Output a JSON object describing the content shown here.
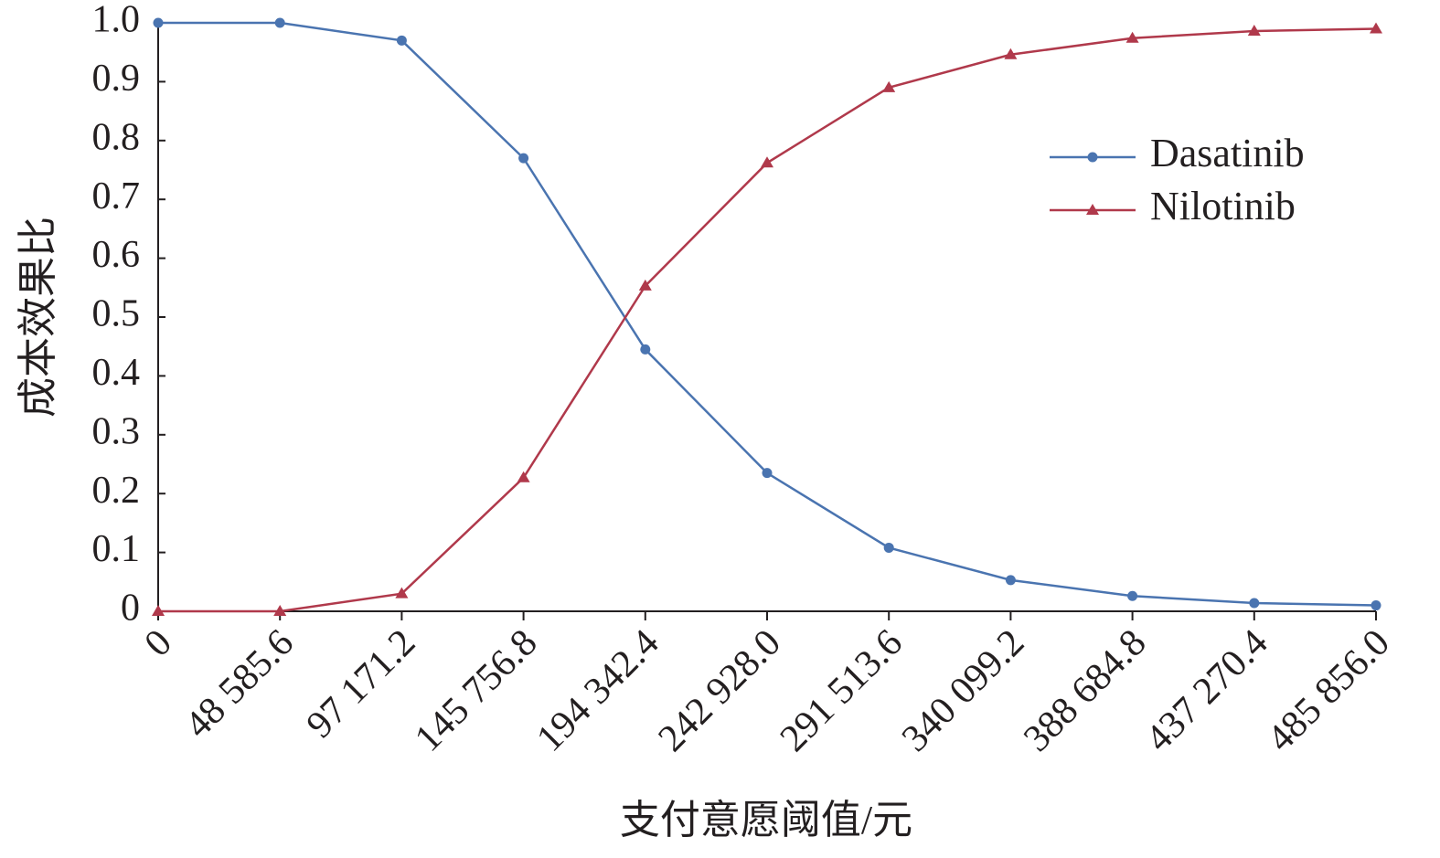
{
  "chart_data": {
    "type": "line",
    "x_label": "支付意愿阈值/元",
    "y_label": "成本效果比",
    "x": [
      0,
      48585.6,
      97171.2,
      145756.8,
      194342.4,
      242928.0,
      291513.6,
      340099.2,
      388684.8,
      437270.4,
      485856.0
    ],
    "series": [
      {
        "name": "Dasatinib",
        "color": "#4a74b0",
        "marker": "circle",
        "values": [
          1.0,
          1.0,
          0.97,
          0.77,
          0.445,
          0.235,
          0.108,
          0.053,
          0.026,
          0.014,
          0.01
        ]
      },
      {
        "name": "Nilotinib",
        "color": "#b0394b",
        "marker": "triangle",
        "values": [
          0,
          0,
          0.03,
          0.227,
          0.553,
          0.762,
          0.89,
          0.946,
          0.974,
          0.986,
          0.99
        ]
      }
    ],
    "xlim": [
      0,
      485856.0
    ],
    "xticks": [
      0,
      {
        "value": 48585.6,
        "label": "48 585.6"
      },
      {
        "value": 97171.2,
        "label": "97 171.2"
      },
      {
        "value": 145756.8,
        "label": "145 756.8"
      },
      {
        "value": 194342.4,
        "label": "194 342.4"
      },
      {
        "value": 242928.0,
        "label": "242 928.0"
      },
      {
        "value": 291513.6,
        "label": "291 513.6"
      },
      {
        "value": 340099.2,
        "label": "340 099.2"
      },
      {
        "value": 388684.8,
        "label": "388 684.8"
      },
      {
        "value": 437270.4,
        "label": "437 270.4"
      },
      {
        "value": 485856.0,
        "label": "485 856.0"
      }
    ],
    "ylim": [
      0,
      1
    ],
    "yticks": [
      0,
      0.1,
      0.2,
      0.3,
      0.4,
      0.5,
      0.6,
      0.7,
      0.8,
      0.9,
      {
        "value": 1,
        "label": "1.0"
      }
    ],
    "grid": false,
    "legend": "upper right"
  }
}
